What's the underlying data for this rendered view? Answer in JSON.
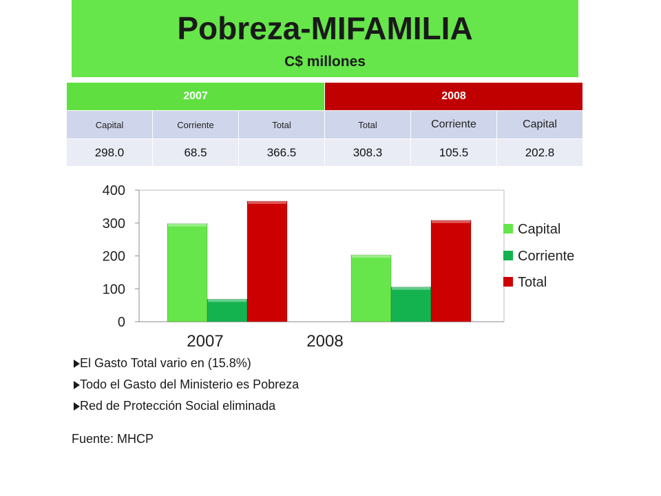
{
  "header": {
    "title": "Pobreza-MIFAMILIA",
    "subtitle": "C$ millones"
  },
  "table": {
    "years": [
      "2007",
      "2008"
    ],
    "columns": [
      "Capital",
      "Corriente",
      "Total",
      "Total",
      "Corriente",
      "Capital"
    ],
    "values": [
      "298.0",
      "68.5",
      "366.5",
      "308.3",
      "105.5",
      "202.8"
    ]
  },
  "chart_data": {
    "type": "bar",
    "categories": [
      "2007",
      "2008"
    ],
    "series": [
      {
        "name": "Capital",
        "values": [
          298.0,
          202.8
        ],
        "color": "#66e64a"
      },
      {
        "name": "Corriente",
        "values": [
          68.5,
          105.5
        ],
        "color": "#15b350"
      },
      {
        "name": "Total",
        "values": [
          366.5,
          308.3
        ],
        "color": "#cc0000"
      }
    ],
    "title": "",
    "xlabel": "",
    "ylabel": "",
    "ylim": [
      0,
      400
    ],
    "yticks": [
      0,
      100,
      200,
      300,
      400
    ],
    "grid": false,
    "legend": "right"
  },
  "bullets": [
    "El Gasto Total vario en (15.8%)",
    "Todo el Gasto del Ministerio es Pobreza",
    "Red de Protección Social eliminada"
  ],
  "source": "Fuente: MHCP"
}
